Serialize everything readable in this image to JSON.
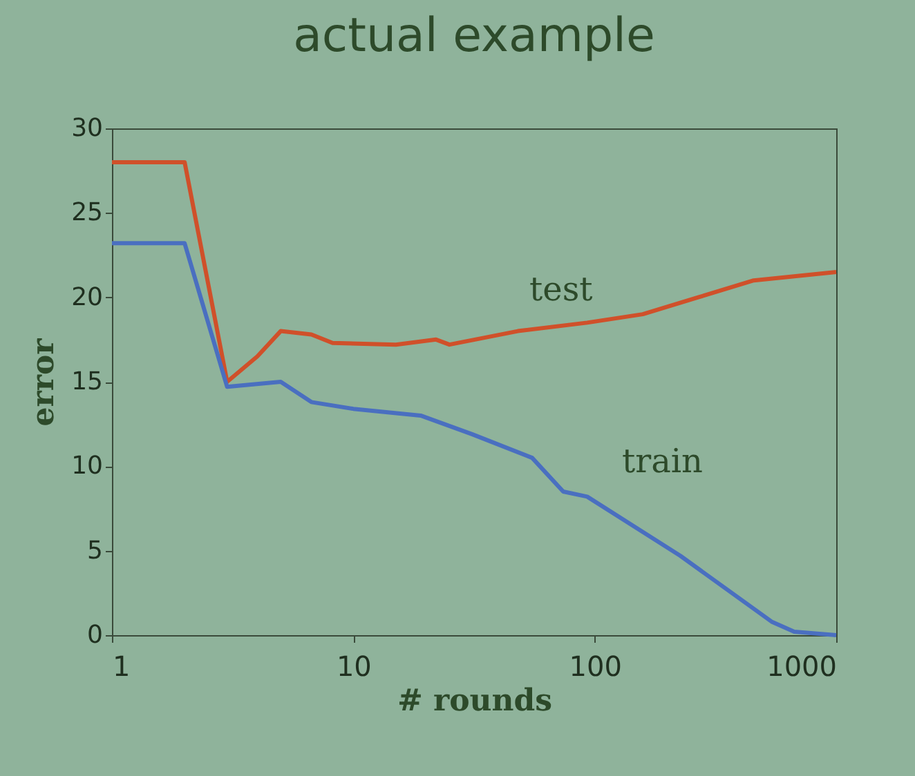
{
  "chart_data": {
    "type": "line",
    "title": "actual example",
    "xlabel": "# rounds",
    "ylabel": "error",
    "log": "x",
    "xlim": [
      1,
      1000
    ],
    "xticks": [
      1,
      10,
      100,
      1000
    ],
    "ylim": [
      0,
      30
    ],
    "yticks": [
      0,
      5,
      10,
      15,
      20,
      25,
      30
    ],
    "grid": false,
    "series": [
      {
        "color": "#d0502a",
        "x": [
          1,
          2,
          3,
          4,
          5,
          6.7,
          8.2,
          15,
          22,
          25,
          48,
          93,
          158,
          268,
          455,
          1000
        ],
        "values": [
          28,
          28,
          15,
          16.5,
          18,
          17.8,
          17.3,
          17.2,
          17.5,
          17.2,
          18,
          18.5,
          19,
          20,
          21,
          21.5
        ]
      },
      {
        "color": "#4a6fc0",
        "x": [
          1,
          2,
          3,
          5,
          6.7,
          10,
          19,
          31,
          55,
          74,
          93,
          226,
          540,
          670,
          1000
        ],
        "values": [
          23.2,
          23.2,
          14.7,
          15,
          13.8,
          13.4,
          13,
          11.9,
          10.5,
          8.5,
          8.2,
          4.7,
          0.8,
          0.2,
          0
        ]
      }
    ],
    "annotations": [
      "test",
      "train"
    ]
  }
}
